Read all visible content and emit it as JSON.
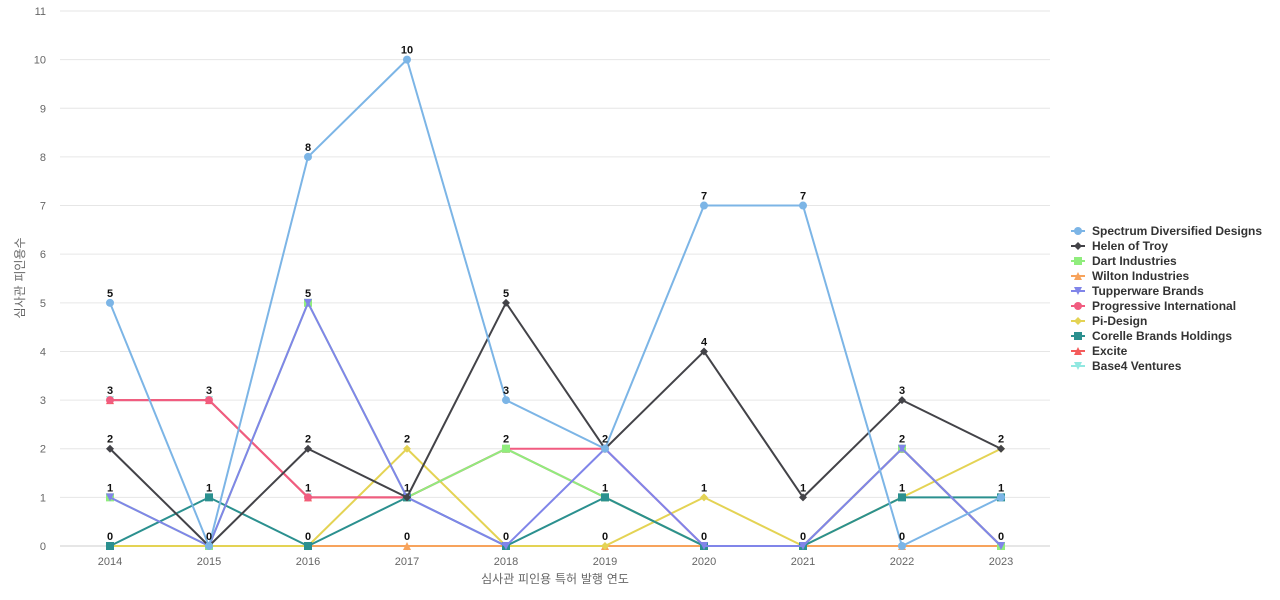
{
  "chart_data": {
    "type": "line",
    "title": "",
    "xlabel": "심사관 피인용 특허 발행 연도",
    "ylabel": "심사관 피인용수",
    "x": [
      "2014",
      "2015",
      "2016",
      "2017",
      "2018",
      "2019",
      "2020",
      "2021",
      "2022",
      "2023"
    ],
    "y_ticks": [
      "0",
      "1",
      "2",
      "3",
      "4",
      "5",
      "6",
      "7",
      "8",
      "9",
      "10",
      "11"
    ],
    "ylim": [
      0,
      11
    ],
    "grid": true,
    "legend_position": "right",
    "series": [
      {
        "name": "Spectrum Diversified Designs",
        "color": "#7cb5e6",
        "marker": "circle",
        "values": [
          5,
          0,
          8,
          10,
          3,
          2,
          7,
          7,
          0,
          1
        ]
      },
      {
        "name": "Helen of Troy",
        "color": "#434348",
        "marker": "diamond",
        "values": [
          2,
          0,
          2,
          1,
          5,
          2,
          4,
          1,
          3,
          2
        ]
      },
      {
        "name": "Dart Industries",
        "color": "#90ed7d",
        "marker": "square",
        "values": [
          1,
          0,
          5,
          1,
          2,
          1,
          0,
          0,
          2,
          0
        ]
      },
      {
        "name": "Wilton Industries",
        "color": "#f7a35c",
        "marker": "triangle",
        "values": [
          0,
          0,
          0,
          0,
          0,
          0,
          0,
          0,
          0,
          0
        ]
      },
      {
        "name": "Tupperware Brands",
        "color": "#8085e9",
        "marker": "triangle-down",
        "values": [
          1,
          0,
          5,
          1,
          0,
          2,
          0,
          0,
          2,
          0
        ]
      },
      {
        "name": "Progressive International",
        "color": "#f15c80",
        "marker": "circle",
        "values": [
          3,
          3,
          1,
          1,
          2,
          2,
          0,
          0,
          2,
          0
        ]
      },
      {
        "name": "Pi-Design",
        "color": "#e4d354",
        "marker": "diamond",
        "values": [
          0,
          0,
          0,
          2,
          0,
          0,
          1,
          0,
          1,
          2
        ]
      },
      {
        "name": "Corelle Brands Holdings",
        "color": "#2b908f",
        "marker": "square",
        "values": [
          0,
          1,
          0,
          1,
          0,
          1,
          0,
          0,
          1,
          1
        ]
      },
      {
        "name": "Excite",
        "color": "#f45b5b",
        "marker": "triangle",
        "values": [
          3,
          3,
          1,
          1,
          2,
          1,
          0,
          0,
          2,
          0
        ]
      },
      {
        "name": "Base4 Ventures",
        "color": "#91e8e1",
        "marker": "triangle-down",
        "values": [
          3,
          3,
          1,
          1,
          2,
          1,
          0,
          0,
          2,
          0
        ]
      }
    ],
    "data_labels": [
      {
        "x": "2014",
        "y": 5,
        "text": "5"
      },
      {
        "x": "2014",
        "y": 3,
        "text": "3"
      },
      {
        "x": "2014",
        "y": 2,
        "text": "2"
      },
      {
        "x": "2014",
        "y": 1,
        "text": "1"
      },
      {
        "x": "2014",
        "y": 0,
        "text": "0"
      },
      {
        "x": "2015",
        "y": 3,
        "text": "3"
      },
      {
        "x": "2015",
        "y": 1,
        "text": "1"
      },
      {
        "x": "2015",
        "y": 0,
        "text": "0"
      },
      {
        "x": "2016",
        "y": 8,
        "text": "8"
      },
      {
        "x": "2016",
        "y": 5,
        "text": "5"
      },
      {
        "x": "2016",
        "y": 2,
        "text": "2"
      },
      {
        "x": "2016",
        "y": 1,
        "text": "1"
      },
      {
        "x": "2016",
        "y": 0,
        "text": "0"
      },
      {
        "x": "2017",
        "y": 10,
        "text": "10"
      },
      {
        "x": "2017",
        "y": 2,
        "text": "2"
      },
      {
        "x": "2017",
        "y": 1,
        "text": "1"
      },
      {
        "x": "2017",
        "y": 0,
        "text": "0"
      },
      {
        "x": "2018",
        "y": 5,
        "text": "5"
      },
      {
        "x": "2018",
        "y": 3,
        "text": "3"
      },
      {
        "x": "2018",
        "y": 2,
        "text": "2"
      },
      {
        "x": "2018",
        "y": 0,
        "text": "0"
      },
      {
        "x": "2019",
        "y": 2,
        "text": "2"
      },
      {
        "x": "2019",
        "y": 1,
        "text": "1"
      },
      {
        "x": "2019",
        "y": 0,
        "text": "0"
      },
      {
        "x": "2020",
        "y": 7,
        "text": "7"
      },
      {
        "x": "2020",
        "y": 4,
        "text": "4"
      },
      {
        "x": "2020",
        "y": 1,
        "text": "1"
      },
      {
        "x": "2020",
        "y": 0,
        "text": "0"
      },
      {
        "x": "2021",
        "y": 7,
        "text": "7"
      },
      {
        "x": "2021",
        "y": 1,
        "text": "1"
      },
      {
        "x": "2021",
        "y": 0,
        "text": "0"
      },
      {
        "x": "2022",
        "y": 3,
        "text": "3"
      },
      {
        "x": "2022",
        "y": 2,
        "text": "2"
      },
      {
        "x": "2022",
        "y": 1,
        "text": "1"
      },
      {
        "x": "2022",
        "y": 0,
        "text": "0"
      },
      {
        "x": "2023",
        "y": 2,
        "text": "2"
      },
      {
        "x": "2023",
        "y": 1,
        "text": "1"
      },
      {
        "x": "2023",
        "y": 0,
        "text": "0"
      }
    ]
  }
}
